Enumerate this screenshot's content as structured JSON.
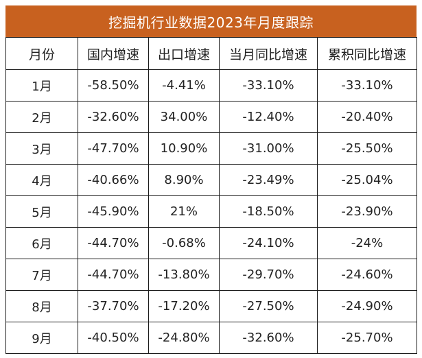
{
  "title": "挖掘机行业数据2023年月度跟踪",
  "headers": [
    "月份",
    "国内增速",
    "出口增速",
    "当月同比增速",
    "累积同比增速"
  ],
  "rows": [
    [
      "1月",
      "-58.50%",
      "-4.41%",
      "-33.10%",
      "-33.10%"
    ],
    [
      "2月",
      "-32.60%",
      "34.00%",
      "-12.40%",
      "-20.40%"
    ],
    [
      "3月",
      "-47.70%",
      "10.90%",
      "-31.00%",
      "-25.50%"
    ],
    [
      "4月",
      "-40.66%",
      "8.90%",
      "-23.49%",
      "-25.04%"
    ],
    [
      "5月",
      "-45.90%",
      "21%",
      "-18.50%",
      "-23.90%"
    ],
    [
      "6月",
      "-44.70%",
      "-0.68%",
      "-24.10%",
      "-24%"
    ],
    [
      "7月",
      "-44.70%",
      "-13.80%",
      "-29.70%",
      "-24.60%"
    ],
    [
      "8月",
      "-37.70%",
      "-17.20%",
      "-27.50%",
      "-24.90%"
    ],
    [
      "9月",
      "-40.50%",
      "-24.80%",
      "-32.60%",
      "-25.70%"
    ]
  ],
  "colors": {
    "title_background": "#c8611f",
    "title_text": "#ffffff",
    "border": "#1a1a1a"
  }
}
